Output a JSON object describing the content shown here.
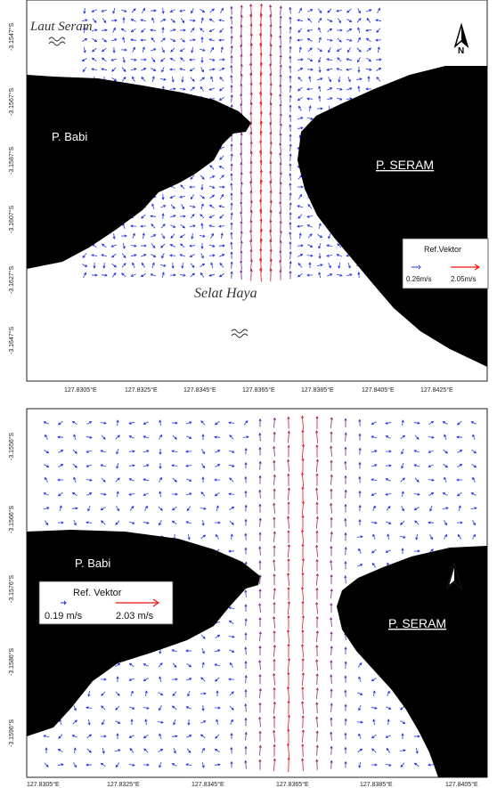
{
  "maps": [
    {
      "labels": {
        "sea_north": "Laut Seram",
        "island_west": "P. Babi",
        "island_east": "P. SERAM",
        "strait": "Selat Haya",
        "north": "N"
      },
      "ref_vector": {
        "title": "Ref.Vektor",
        "min_label": "0.26m/s",
        "max_label": "2.05m/s",
        "min_speed": 0.26,
        "max_speed": 2.05
      },
      "y_ticks": [
        "-3.1547°S",
        "-3.1567°S",
        "-3.1587°S",
        "-3.1607°S",
        "-3.1627°S",
        "-3.1647°S"
      ],
      "x_ticks": [
        "127.8305°E",
        "127.8325°E",
        "127.8345°E",
        "127.8365°E",
        "127.8385°E",
        "127.8405°E",
        "127.8425°E"
      ]
    },
    {
      "labels": {
        "island_west": "P. Babi",
        "island_east": "P. SERAM",
        "north": "N"
      },
      "ref_vector": {
        "title": "Ref. Vektor",
        "min_label": "0.19 m/s",
        "max_label": "2.03 m/s",
        "min_speed": 0.19,
        "max_speed": 2.03
      },
      "y_ticks": [
        "-3.1556°S",
        "-3.1566°S",
        "-3.1576°S",
        "-3.1586°S",
        "-3.1596°S"
      ],
      "x_ticks": [
        "127.8305°E",
        "127.8325°E",
        "127.8345°E",
        "127.8365°E",
        "127.8385°E",
        "127.8405°E"
      ]
    }
  ],
  "colors": {
    "land": "#000000",
    "slow_vector": "#2233dd",
    "fast_vector": "#ee1111",
    "frame": "#222222"
  },
  "icons": {
    "north_arrow": "north-arrow-icon",
    "waves": "waves-icon"
  }
}
